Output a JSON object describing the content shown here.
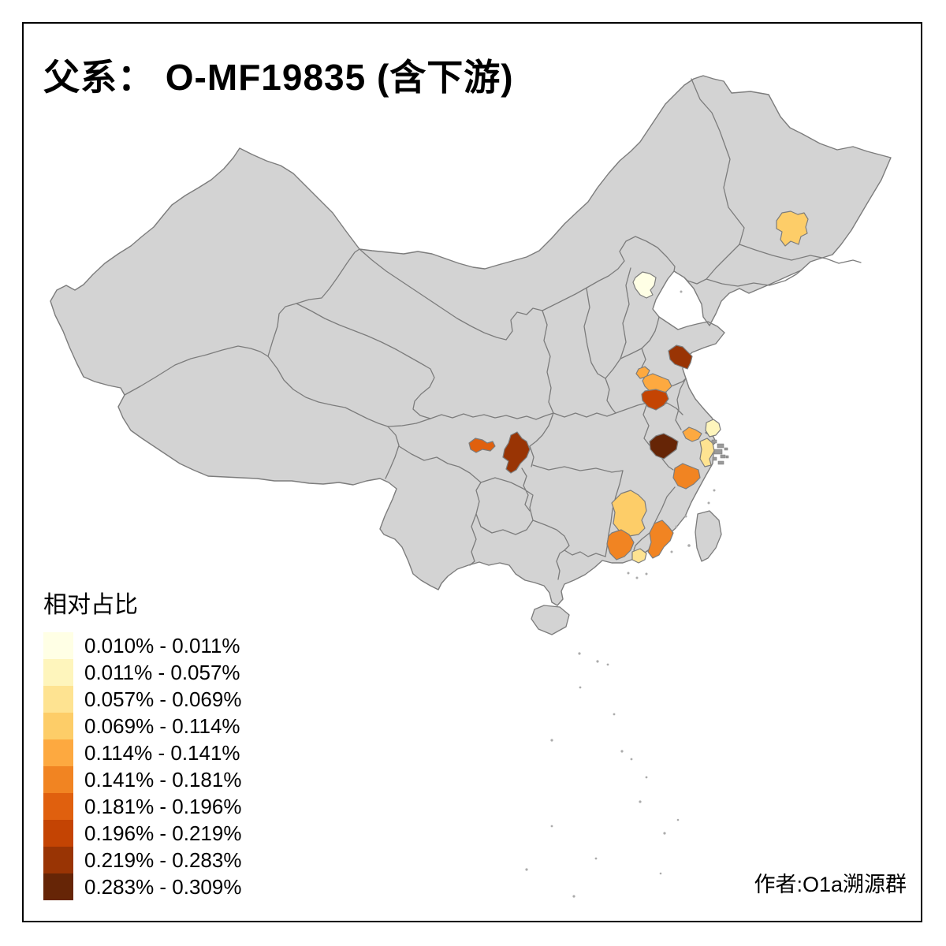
{
  "title": "父系： O-MF19835 (含下游)",
  "author": "作者:O1a溯源群",
  "legend": {
    "title": "相对占比",
    "classes": [
      {
        "range": "0.010% - 0.011%",
        "color": "#FFFFE5"
      },
      {
        "range": "0.011% - 0.057%",
        "color": "#FEF5BC"
      },
      {
        "range": "0.057% - 0.069%",
        "color": "#FEE391"
      },
      {
        "range": "0.069% - 0.114%",
        "color": "#FDCD68"
      },
      {
        "range": "0.114% - 0.141%",
        "color": "#FDA940"
      },
      {
        "range": "0.141% - 0.181%",
        "color": "#F18422"
      },
      {
        "range": "0.181% - 0.196%",
        "color": "#E0600E"
      },
      {
        "range": "0.196% - 0.219%",
        "color": "#C44403"
      },
      {
        "range": "0.219% - 0.283%",
        "color": "#993404"
      },
      {
        "range": "0.283% - 0.309%",
        "color": "#662506"
      }
    ]
  },
  "map": {
    "land_color": "#D3D3D3",
    "border_color": "#7C7C7C",
    "sea_color": "#FFFFFF",
    "regions": [
      {
        "id": "northeast-harbin",
        "class_index": 3
      },
      {
        "id": "beijing",
        "class_index": 0
      },
      {
        "id": "shandong-qingdao",
        "class_index": 8
      },
      {
        "id": "henan-north-small",
        "class_index": 4
      },
      {
        "id": "henan-zhengzhou",
        "class_index": 4
      },
      {
        "id": "henan-south",
        "class_index": 7
      },
      {
        "id": "chengdu",
        "class_index": 6
      },
      {
        "id": "chongqing",
        "class_index": 8
      },
      {
        "id": "south-anhui",
        "class_index": 9
      },
      {
        "id": "central-jiangsu",
        "class_index": 4
      },
      {
        "id": "shanghai-area",
        "class_index": 1
      },
      {
        "id": "north-zhejiang",
        "class_index": 2
      },
      {
        "id": "central-zhejiang",
        "class_index": 5
      },
      {
        "id": "south-jiangxi",
        "class_index": 3
      },
      {
        "id": "northeast-guangdong",
        "class_index": 5
      },
      {
        "id": "south-fujian",
        "class_index": 5
      },
      {
        "id": "east-guangdong-chaoshan",
        "class_index": 2
      }
    ]
  }
}
